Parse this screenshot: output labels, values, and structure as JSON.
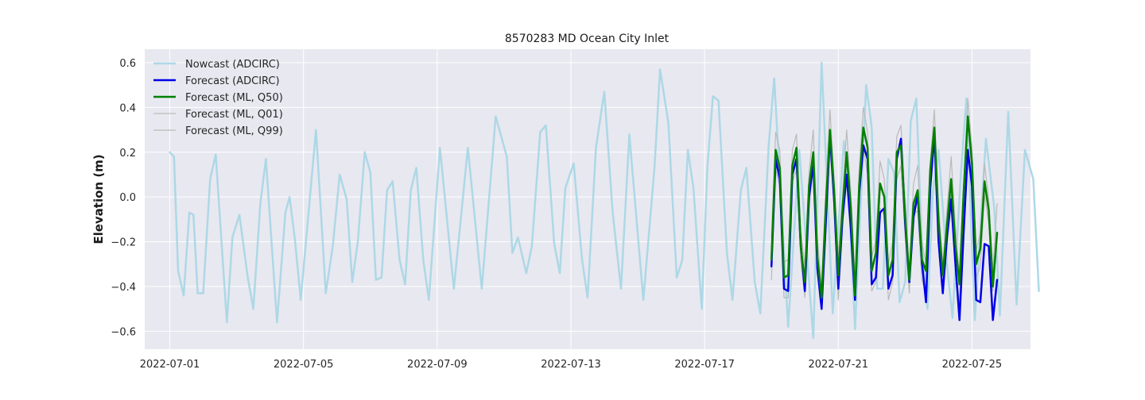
{
  "chart_data": {
    "type": "line",
    "title": "8570283 MD Ocean City Inlet",
    "xlabel": "",
    "ylabel": "Elevation (m)",
    "x_range": [
      "2022-06-30T06:00",
      "2022-07-26T18:00"
    ],
    "ylim": [
      -0.68,
      0.66
    ],
    "x_ticks": [
      "2022-07-01",
      "2022-07-05",
      "2022-07-09",
      "2022-07-13",
      "2022-07-17",
      "2022-07-21",
      "2022-07-25"
    ],
    "y_ticks": [
      -0.6,
      -0.4,
      -0.2,
      0.0,
      0.2,
      0.4,
      0.6
    ],
    "y_tick_labels": [
      "−0.6",
      "−0.4",
      "−0.2",
      "0.0",
      "0.2",
      "0.4",
      "0.6"
    ],
    "grid": true,
    "legend_position": "top-left",
    "background": "#e8e8f0",
    "series": [
      {
        "name": "Nowcast (ADCIRC)",
        "color": "#add8e6",
        "width": 2.5,
        "kind": "nowcast",
        "points": [
          [
            "2022-07-01T00:00",
            0.2
          ],
          [
            "2022-07-01T03:00",
            0.18
          ],
          [
            "2022-07-01T06:00",
            -0.33
          ],
          [
            "2022-07-01T10:00",
            -0.44
          ],
          [
            "2022-07-01T14:00",
            -0.07
          ],
          [
            "2022-07-01T17:00",
            -0.08
          ],
          [
            "2022-07-01T20:00",
            -0.43
          ],
          [
            "2022-07-02T00:00",
            -0.43
          ],
          [
            "2022-07-02T05:00",
            0.08
          ],
          [
            "2022-07-02T09:00",
            0.19
          ],
          [
            "2022-07-02T17:00",
            -0.56
          ],
          [
            "2022-07-02T21:00",
            -0.18
          ],
          [
            "2022-07-03T02:00",
            -0.08
          ],
          [
            "2022-07-03T08:00",
            -0.36
          ],
          [
            "2022-07-03T12:00",
            -0.5
          ],
          [
            "2022-07-03T17:00",
            -0.03
          ],
          [
            "2022-07-03T21:00",
            0.17
          ],
          [
            "2022-07-04T05:00",
            -0.56
          ],
          [
            "2022-07-04T11:00",
            -0.07
          ],
          [
            "2022-07-04T14:00",
            0.0
          ],
          [
            "2022-07-04T18:00",
            -0.2
          ],
          [
            "2022-07-04T22:00",
            -0.46
          ],
          [
            "2022-07-05T09:00",
            0.3
          ],
          [
            "2022-07-05T16:00",
            -0.43
          ],
          [
            "2022-07-05T21:00",
            -0.22
          ],
          [
            "2022-07-06T02:00",
            0.1
          ],
          [
            "2022-07-06T07:00",
            -0.01
          ],
          [
            "2022-07-06T11:00",
            -0.38
          ],
          [
            "2022-07-06T15:00",
            -0.2
          ],
          [
            "2022-07-06T20:00",
            0.2
          ],
          [
            "2022-07-07T00:00",
            0.11
          ],
          [
            "2022-07-07T04:00",
            -0.37
          ],
          [
            "2022-07-07T08:00",
            -0.36
          ],
          [
            "2022-07-07T12:00",
            0.03
          ],
          [
            "2022-07-07T16:00",
            0.07
          ],
          [
            "2022-07-07T21:00",
            -0.28
          ],
          [
            "2022-07-08T01:00",
            -0.39
          ],
          [
            "2022-07-08T05:00",
            0.03
          ],
          [
            "2022-07-08T09:00",
            0.13
          ],
          [
            "2022-07-08T14:00",
            -0.28
          ],
          [
            "2022-07-08T18:00",
            -0.46
          ],
          [
            "2022-07-09T02:00",
            0.22
          ],
          [
            "2022-07-09T12:00",
            -0.41
          ],
          [
            "2022-07-09T22:00",
            0.22
          ],
          [
            "2022-07-10T08:00",
            -0.41
          ],
          [
            "2022-07-10T18:00",
            0.36
          ],
          [
            "2022-07-11T02:00",
            0.18
          ],
          [
            "2022-07-11T06:00",
            -0.25
          ],
          [
            "2022-07-11T10:00",
            -0.18
          ],
          [
            "2022-07-11T16:00",
            -0.34
          ],
          [
            "2022-07-11T20:00",
            -0.22
          ],
          [
            "2022-07-12T02:00",
            0.29
          ],
          [
            "2022-07-12T06:00",
            0.32
          ],
          [
            "2022-07-12T12:00",
            -0.21
          ],
          [
            "2022-07-12T16:00",
            -0.34
          ],
          [
            "2022-07-12T20:00",
            0.04
          ],
          [
            "2022-07-13T02:00",
            0.15
          ],
          [
            "2022-07-13T08:00",
            -0.28
          ],
          [
            "2022-07-13T12:00",
            -0.45
          ],
          [
            "2022-07-13T18:00",
            0.22
          ],
          [
            "2022-07-14T00:00",
            0.47
          ],
          [
            "2022-07-14T06:00",
            -0.07
          ],
          [
            "2022-07-14T12:00",
            -0.41
          ],
          [
            "2022-07-14T18:00",
            0.28
          ],
          [
            "2022-07-14T22:00",
            -0.02
          ],
          [
            "2022-07-15T04:00",
            -0.46
          ],
          [
            "2022-07-15T12:00",
            0.13
          ],
          [
            "2022-07-15T16:00",
            0.57
          ],
          [
            "2022-07-15T22:00",
            0.33
          ],
          [
            "2022-07-16T04:00",
            -0.36
          ],
          [
            "2022-07-16T08:00",
            -0.28
          ],
          [
            "2022-07-16T12:00",
            0.21
          ],
          [
            "2022-07-16T16:00",
            0.04
          ],
          [
            "2022-07-16T22:00",
            -0.5
          ],
          [
            "2022-07-17T02:00",
            0.13
          ],
          [
            "2022-07-17T06:00",
            0.45
          ],
          [
            "2022-07-17T10:00",
            0.43
          ],
          [
            "2022-07-17T16:00",
            -0.25
          ],
          [
            "2022-07-17T20:00",
            -0.46
          ],
          [
            "2022-07-18T02:00",
            0.03
          ],
          [
            "2022-07-18T06:00",
            0.13
          ],
          [
            "2022-07-18T12:00",
            -0.38
          ],
          [
            "2022-07-18T16:00",
            -0.52
          ],
          [
            "2022-07-18T22:00",
            0.23
          ],
          [
            "2022-07-19T02:00",
            0.53
          ],
          [
            "2022-07-19T12:00",
            -0.58
          ],
          [
            "2022-07-19T20:00",
            0.21
          ],
          [
            "2022-07-20T06:00",
            -0.63
          ],
          [
            "2022-07-20T12:00",
            0.6
          ],
          [
            "2022-07-20T20:00",
            -0.52
          ],
          [
            "2022-07-21T04:00",
            0.25
          ],
          [
            "2022-07-21T08:00",
            -0.04
          ],
          [
            "2022-07-21T12:00",
            -0.59
          ],
          [
            "2022-07-21T20:00",
            0.5
          ],
          [
            "2022-07-22T00:00",
            0.31
          ],
          [
            "2022-07-22T04:00",
            -0.41
          ],
          [
            "2022-07-22T08:00",
            -0.41
          ],
          [
            "2022-07-22T12:00",
            0.17
          ],
          [
            "2022-07-22T16:00",
            0.11
          ],
          [
            "2022-07-22T20:00",
            -0.47
          ],
          [
            "2022-07-23T00:00",
            -0.38
          ],
          [
            "2022-07-23T04:00",
            0.34
          ],
          [
            "2022-07-23T08:00",
            0.44
          ],
          [
            "2022-07-23T12:00",
            -0.21
          ],
          [
            "2022-07-23T16:00",
            -0.5
          ],
          [
            "2022-07-23T20:00",
            0.03
          ],
          [
            "2022-07-24T00:00",
            0.21
          ],
          [
            "2022-07-24T06:00",
            -0.3
          ],
          [
            "2022-07-24T10:00",
            -0.54
          ],
          [
            "2022-07-24T16:00",
            0.1
          ],
          [
            "2022-07-24T20:00",
            0.44
          ],
          [
            "2022-07-25T02:00",
            -0.55
          ],
          [
            "2022-07-25T10:00",
            0.26
          ],
          [
            "2022-07-25T16:00",
            -0.05
          ],
          [
            "2022-07-25T20:00",
            -0.53
          ],
          [
            "2022-07-26T02:00",
            0.38
          ],
          [
            "2022-07-26T08:00",
            -0.48
          ],
          [
            "2022-07-26T14:00",
            0.21
          ],
          [
            "2022-07-26T20:00",
            0.08
          ],
          [
            "2022-07-27T00:00",
            -0.42
          ]
        ]
      },
      {
        "name": "Forecast (ADCIRC)",
        "color": "#0000e6",
        "width": 2.5,
        "kind": "forecast",
        "start": "2022-07-19T00:00",
        "step_hours": 3,
        "values": [
          -0.31,
          0.17,
          0.08,
          -0.41,
          -0.42,
          0.1,
          0.17,
          -0.21,
          -0.42,
          0.0,
          0.15,
          -0.32,
          -0.5,
          -0.12,
          0.28,
          -0.01,
          -0.41,
          -0.1,
          0.1,
          -0.14,
          -0.46,
          0.02,
          0.23,
          0.17,
          -0.39,
          -0.36,
          -0.07,
          -0.05,
          -0.41,
          -0.35,
          0.17,
          0.26,
          -0.12,
          -0.38,
          -0.09,
          0.01,
          -0.29,
          -0.47,
          0.04,
          0.28,
          -0.2,
          -0.43,
          -0.18,
          -0.01,
          -0.29,
          -0.55,
          -0.16,
          0.21,
          0.05,
          -0.46,
          -0.47,
          -0.21,
          -0.22,
          -0.55,
          -0.37
        ]
      },
      {
        "name": "Forecast (ML, Q50)",
        "color": "#008000",
        "width": 2.5,
        "kind": "forecast",
        "start": "2022-07-19T00:00",
        "step_hours": 3,
        "values": [
          -0.28,
          0.21,
          0.13,
          -0.36,
          -0.35,
          0.14,
          0.22,
          -0.22,
          -0.38,
          0.05,
          0.2,
          -0.27,
          -0.45,
          -0.05,
          0.3,
          0.03,
          -0.35,
          -0.06,
          0.2,
          -0.05,
          -0.44,
          0.05,
          0.31,
          0.22,
          -0.33,
          -0.25,
          0.06,
          0.0,
          -0.35,
          -0.28,
          0.2,
          0.23,
          -0.09,
          -0.37,
          -0.03,
          0.03,
          -0.28,
          -0.33,
          0.12,
          0.31,
          -0.11,
          -0.35,
          -0.13,
          0.08,
          -0.21,
          -0.39,
          0.02,
          0.36,
          0.15,
          -0.3,
          -0.23,
          0.07,
          -0.06,
          -0.4,
          -0.16
        ]
      },
      {
        "name": "Forecast (ML, Q01)",
        "color": "#bababa",
        "width": 1.2,
        "kind": "forecast",
        "start": "2022-07-19T00:00",
        "step_hours": 3,
        "values": [
          -0.37,
          0.12,
          0.05,
          -0.45,
          -0.45,
          0.07,
          0.12,
          -0.28,
          -0.45,
          -0.04,
          0.14,
          -0.32,
          -0.48,
          -0.16,
          0.22,
          -0.05,
          -0.46,
          -0.1,
          0.1,
          -0.16,
          -0.43,
          -0.03,
          0.22,
          0.1,
          -0.42,
          -0.38,
          -0.05,
          -0.08,
          -0.46,
          -0.38,
          0.08,
          0.14,
          -0.18,
          -0.43,
          -0.08,
          -0.06,
          -0.37,
          -0.43,
          0.04,
          0.26,
          -0.2,
          -0.42,
          -0.23,
          0.01,
          -0.28,
          -0.47,
          -0.04,
          0.32,
          0.1,
          -0.36,
          -0.31,
          0.01,
          -0.12,
          -0.42,
          -0.19
        ]
      },
      {
        "name": "Forecast (ML, Q99)",
        "color": "#bababa",
        "width": 1.2,
        "kind": "forecast",
        "start": "2022-07-19T00:00",
        "step_hours": 3,
        "values": [
          -0.18,
          0.29,
          0.21,
          -0.29,
          -0.28,
          0.21,
          0.28,
          -0.15,
          -0.31,
          0.11,
          0.3,
          -0.19,
          -0.4,
          0.03,
          0.39,
          0.08,
          -0.26,
          0.0,
          0.3,
          0.02,
          -0.35,
          0.13,
          0.4,
          0.29,
          -0.27,
          -0.19,
          0.16,
          0.08,
          -0.3,
          -0.2,
          0.27,
          0.32,
          -0.02,
          -0.33,
          0.06,
          0.14,
          -0.2,
          -0.3,
          0.15,
          0.39,
          -0.04,
          -0.3,
          -0.06,
          0.18,
          -0.13,
          -0.35,
          0.06,
          0.44,
          0.22,
          -0.24,
          -0.16,
          0.15,
          -0.01,
          -0.33,
          -0.03
        ]
      }
    ]
  }
}
